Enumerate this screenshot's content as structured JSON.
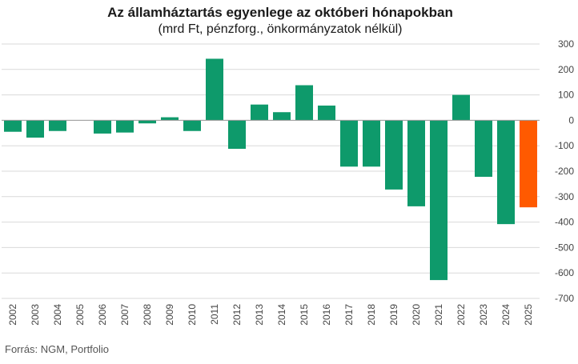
{
  "chart_data": {
    "type": "bar",
    "title": "Az államháztartás egyenlege az októberi hónapokban",
    "subtitle": "(mrd Ft, pénzforg., önkormányzatok nélkül)",
    "source": "Forrás: NGM, Portfolio",
    "categories": [
      "2002",
      "2003",
      "2004",
      "2005",
      "2006",
      "2007",
      "2008",
      "2009",
      "2010",
      "2011",
      "2012",
      "2013",
      "2014",
      "2015",
      "2016",
      "2017",
      "2018",
      "2019",
      "2020",
      "2021",
      "2022",
      "2023",
      "2024",
      "2025"
    ],
    "values": [
      -45,
      -68,
      -42,
      0,
      -52,
      -48,
      -12,
      12,
      -42,
      242,
      -112,
      62,
      32,
      138,
      58,
      -182,
      -182,
      -272,
      -338,
      -628,
      100,
      -222,
      -408,
      -342
    ],
    "ylim": [
      -700,
      300
    ],
    "yticks": [
      "300",
      "200",
      "100",
      "0",
      "-100",
      "-200",
      "-300",
      "-400",
      "-500",
      "-600",
      "-700"
    ],
    "ytick_values": [
      300,
      200,
      100,
      0,
      -100,
      -200,
      -300,
      -400,
      -500,
      -600,
      -700
    ],
    "grid": true,
    "axis_position": "right",
    "colors": {
      "default": "#0e9a6b",
      "highlight": "#ff5a00"
    },
    "highlight_index": 23
  }
}
